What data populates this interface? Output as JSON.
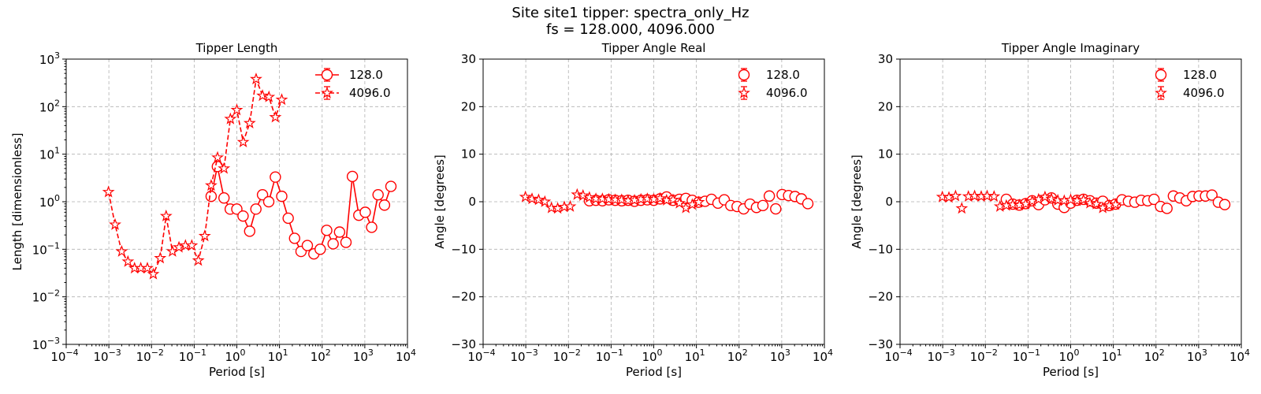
{
  "figure": {
    "title_line1": "Site site1 tipper: spectra_only_Hz",
    "title_line2": "fs = 128.000, 4096.000"
  },
  "colors": {
    "series": "#ff0000",
    "marker_fill": "#ffffff"
  },
  "chart_data": [
    {
      "type": "scatter",
      "title": "Tipper Length",
      "xlabel": "Period [s]",
      "ylabel": "Length [dimensionless]",
      "xscale": "log",
      "yscale": "log",
      "xlim": [
        0.0001,
        10000
      ],
      "ylim": [
        0.001,
        1000
      ],
      "xticks": [
        {
          "value": 0.0001,
          "base": "10",
          "exp": "−4"
        },
        {
          "value": 0.001,
          "base": "10",
          "exp": "−3"
        },
        {
          "value": 0.01,
          "base": "10",
          "exp": "−2"
        },
        {
          "value": 0.1,
          "base": "10",
          "exp": "−1"
        },
        {
          "value": 1,
          "base": "10",
          "exp": "0"
        },
        {
          "value": 10,
          "base": "10",
          "exp": "1"
        },
        {
          "value": 100,
          "base": "10",
          "exp": "2"
        },
        {
          "value": 1000,
          "base": "10",
          "exp": "3"
        },
        {
          "value": 10000,
          "base": "10",
          "exp": "4"
        }
      ],
      "yticks": [
        {
          "value": 0.001,
          "base": "10",
          "exp": "−3"
        },
        {
          "value": 0.01,
          "base": "10",
          "exp": "−2"
        },
        {
          "value": 0.1,
          "base": "10",
          "exp": "−1"
        },
        {
          "value": 1,
          "base": "10",
          "exp": "0"
        },
        {
          "value": 10,
          "base": "10",
          "exp": "1"
        },
        {
          "value": 100,
          "base": "10",
          "exp": "2"
        },
        {
          "value": 1000,
          "base": "10",
          "exp": "3"
        }
      ],
      "grid": true,
      "legend": "top-right",
      "series": [
        {
          "name": "128.0",
          "marker": "circle",
          "line": "solid",
          "x": [
            0.25,
            0.35,
            0.5,
            0.7,
            1.0,
            1.4,
            2.0,
            2.8,
            4.0,
            5.6,
            8.0,
            11.3,
            16,
            22.6,
            32,
            45,
            64,
            90,
            128,
            181,
            256,
            362,
            512,
            724,
            1024,
            1448,
            2048,
            2896,
            4096
          ],
          "y": [
            1.3,
            5.5,
            1.2,
            0.7,
            0.7,
            0.5,
            0.24,
            0.7,
            1.4,
            1.0,
            3.3,
            1.3,
            0.45,
            0.17,
            0.09,
            0.12,
            0.08,
            0.1,
            0.25,
            0.13,
            0.23,
            0.14,
            3.4,
            0.52,
            0.6,
            0.29,
            1.4,
            0.85,
            2.1
          ]
        },
        {
          "name": "4096.0",
          "marker": "star",
          "line": "dashed",
          "x": [
            0.00098,
            0.0014,
            0.002,
            0.0028,
            0.004,
            0.0056,
            0.008,
            0.011,
            0.016,
            0.022,
            0.031,
            0.044,
            0.0625,
            0.088,
            0.125,
            0.177,
            0.25,
            0.354,
            0.5,
            0.707,
            1.0,
            1.41,
            2.0,
            2.83,
            4.0,
            5.66,
            8.0,
            11.3
          ],
          "y": [
            1.6,
            0.33,
            0.09,
            0.055,
            0.04,
            0.04,
            0.04,
            0.03,
            0.065,
            0.5,
            0.09,
            0.11,
            0.12,
            0.12,
            0.058,
            0.19,
            2.2,
            8.5,
            5.0,
            55,
            85,
            18,
            45,
            380,
            170,
            160,
            60,
            140
          ]
        }
      ]
    },
    {
      "type": "scatter",
      "title": "Tipper Angle Real",
      "xlabel": "Period [s]",
      "ylabel": "Angle [degrees]",
      "xscale": "log",
      "yscale": "linear",
      "xlim": [
        0.0001,
        10000
      ],
      "ylim": [
        -30,
        30
      ],
      "xticks": [
        {
          "value": 0.0001,
          "base": "10",
          "exp": "−4"
        },
        {
          "value": 0.001,
          "base": "10",
          "exp": "−3"
        },
        {
          "value": 0.01,
          "base": "10",
          "exp": "−2"
        },
        {
          "value": 0.1,
          "base": "10",
          "exp": "−1"
        },
        {
          "value": 1,
          "base": "10",
          "exp": "0"
        },
        {
          "value": 10,
          "base": "10",
          "exp": "1"
        },
        {
          "value": 100,
          "base": "10",
          "exp": "2"
        },
        {
          "value": 1000,
          "base": "10",
          "exp": "3"
        },
        {
          "value": 10000,
          "base": "10",
          "exp": "4"
        }
      ],
      "yticks": [
        {
          "value": -30,
          "label": "−30"
        },
        {
          "value": -20,
          "label": "−20"
        },
        {
          "value": -10,
          "label": "−10"
        },
        {
          "value": 0,
          "label": "0"
        },
        {
          "value": 10,
          "label": "10"
        },
        {
          "value": 20,
          "label": "20"
        },
        {
          "value": 30,
          "label": "30"
        }
      ],
      "grid": true,
      "legend": "top-right",
      "series": [
        {
          "name": "128.0",
          "marker": "circle",
          "line": "none",
          "x": [
            0.031,
            0.044,
            0.0625,
            0.088,
            0.125,
            0.177,
            0.25,
            0.354,
            0.5,
            0.707,
            1.0,
            1.41,
            2.0,
            2.83,
            4.0,
            5.66,
            8.0,
            11.3,
            16,
            22.6,
            32,
            45,
            64,
            90,
            128,
            181,
            256,
            362,
            512,
            724,
            1024,
            1448,
            2048,
            2896,
            4096
          ],
          "y": [
            0.2,
            0.3,
            0.2,
            0.4,
            0.3,
            0.2,
            0.3,
            0.1,
            0.3,
            0.4,
            0.3,
            0.6,
            1.0,
            0.3,
            0.5,
            0.7,
            0.3,
            -0.1,
            0.1,
            0.5,
            -0.3,
            0.4,
            -0.8,
            -1.0,
            -1.5,
            -0.5,
            -1.2,
            -0.8,
            1.2,
            -1.5,
            1.5,
            1.3,
            1.1,
            0.6,
            -0.4
          ]
        },
        {
          "name": "4096.0",
          "marker": "star",
          "line": "none",
          "x": [
            0.00098,
            0.0014,
            0.002,
            0.0028,
            0.004,
            0.0056,
            0.008,
            0.011,
            0.016,
            0.022,
            0.031,
            0.044,
            0.0625,
            0.088,
            0.125,
            0.177,
            0.25,
            0.354,
            0.5,
            0.707,
            1.0,
            1.41,
            2.0,
            2.83,
            4.0,
            5.66,
            8.0,
            11.3
          ],
          "y": [
            1.0,
            0.6,
            0.4,
            0.0,
            -1.3,
            -1.4,
            -1.1,
            -1.0,
            1.5,
            1.3,
            0.9,
            0.6,
            0.6,
            0.5,
            0.4,
            0.4,
            0.2,
            0.3,
            0.5,
            0.6,
            0.5,
            0.7,
            0.3,
            0.4,
            -0.3,
            -1.3,
            -0.6,
            -0.1
          ]
        }
      ]
    },
    {
      "type": "scatter",
      "title": "Tipper Angle Imaginary",
      "xlabel": "Period [s]",
      "ylabel": "Angle [degrees]",
      "xscale": "log",
      "yscale": "linear",
      "xlim": [
        0.0001,
        10000
      ],
      "ylim": [
        -30,
        30
      ],
      "xticks": [
        {
          "value": 0.0001,
          "base": "10",
          "exp": "−4"
        },
        {
          "value": 0.001,
          "base": "10",
          "exp": "−3"
        },
        {
          "value": 0.01,
          "base": "10",
          "exp": "−2"
        },
        {
          "value": 0.1,
          "base": "10",
          "exp": "−1"
        },
        {
          "value": 1,
          "base": "10",
          "exp": "0"
        },
        {
          "value": 10,
          "base": "10",
          "exp": "1"
        },
        {
          "value": 100,
          "base": "10",
          "exp": "2"
        },
        {
          "value": 1000,
          "base": "10",
          "exp": "3"
        },
        {
          "value": 10000,
          "base": "10",
          "exp": "4"
        }
      ],
      "yticks": [
        {
          "value": -30,
          "label": "−30"
        },
        {
          "value": -20,
          "label": "−20"
        },
        {
          "value": -10,
          "label": "−10"
        },
        {
          "value": 0,
          "label": "0"
        },
        {
          "value": 10,
          "label": "10"
        },
        {
          "value": 20,
          "label": "20"
        },
        {
          "value": 30,
          "label": "30"
        }
      ],
      "grid": true,
      "legend": "top-right",
      "series": [
        {
          "name": "128.0",
          "marker": "circle",
          "line": "none",
          "x": [
            0.031,
            0.044,
            0.0625,
            0.088,
            0.125,
            0.177,
            0.25,
            0.354,
            0.5,
            0.707,
            1.0,
            1.41,
            2.0,
            2.83,
            4.0,
            5.66,
            8.0,
            11.3,
            16,
            22.6,
            32,
            45,
            64,
            90,
            128,
            181,
            256,
            362,
            512,
            724,
            1024,
            1448,
            2048,
            2896,
            4096
          ],
          "y": [
            0.5,
            -0.5,
            -0.7,
            -0.4,
            0.2,
            -0.6,
            0.4,
            0.8,
            -0.5,
            -1.2,
            -0.3,
            0.3,
            0.5,
            0.2,
            -0.3,
            0.1,
            -0.8,
            -0.5,
            0.4,
            0.1,
            -0.1,
            0.3,
            0.2,
            0.5,
            -1.0,
            -1.4,
            1.2,
            0.8,
            0.2,
            1.1,
            1.2,
            1.2,
            1.4,
            -0.1,
            -0.6
          ]
        },
        {
          "name": "4096.0",
          "marker": "star",
          "line": "none",
          "x": [
            0.00098,
            0.0014,
            0.002,
            0.0028,
            0.004,
            0.0056,
            0.008,
            0.011,
            0.016,
            0.022,
            0.031,
            0.044,
            0.0625,
            0.088,
            0.125,
            0.177,
            0.25,
            0.354,
            0.5,
            0.707,
            1.0,
            1.41,
            2.0,
            2.83,
            4.0,
            5.66,
            8.0,
            11.3
          ],
          "y": [
            1.0,
            0.9,
            1.2,
            -1.4,
            1.1,
            1.2,
            1.1,
            1.2,
            1.1,
            -1.0,
            -0.8,
            -0.6,
            -0.7,
            -0.5,
            0.1,
            0.5,
            1.0,
            0.6,
            0.3,
            0.2,
            0.4,
            0.2,
            0.4,
            -0.3,
            -0.5,
            -1.3,
            -0.8,
            -0.6
          ]
        }
      ]
    }
  ]
}
